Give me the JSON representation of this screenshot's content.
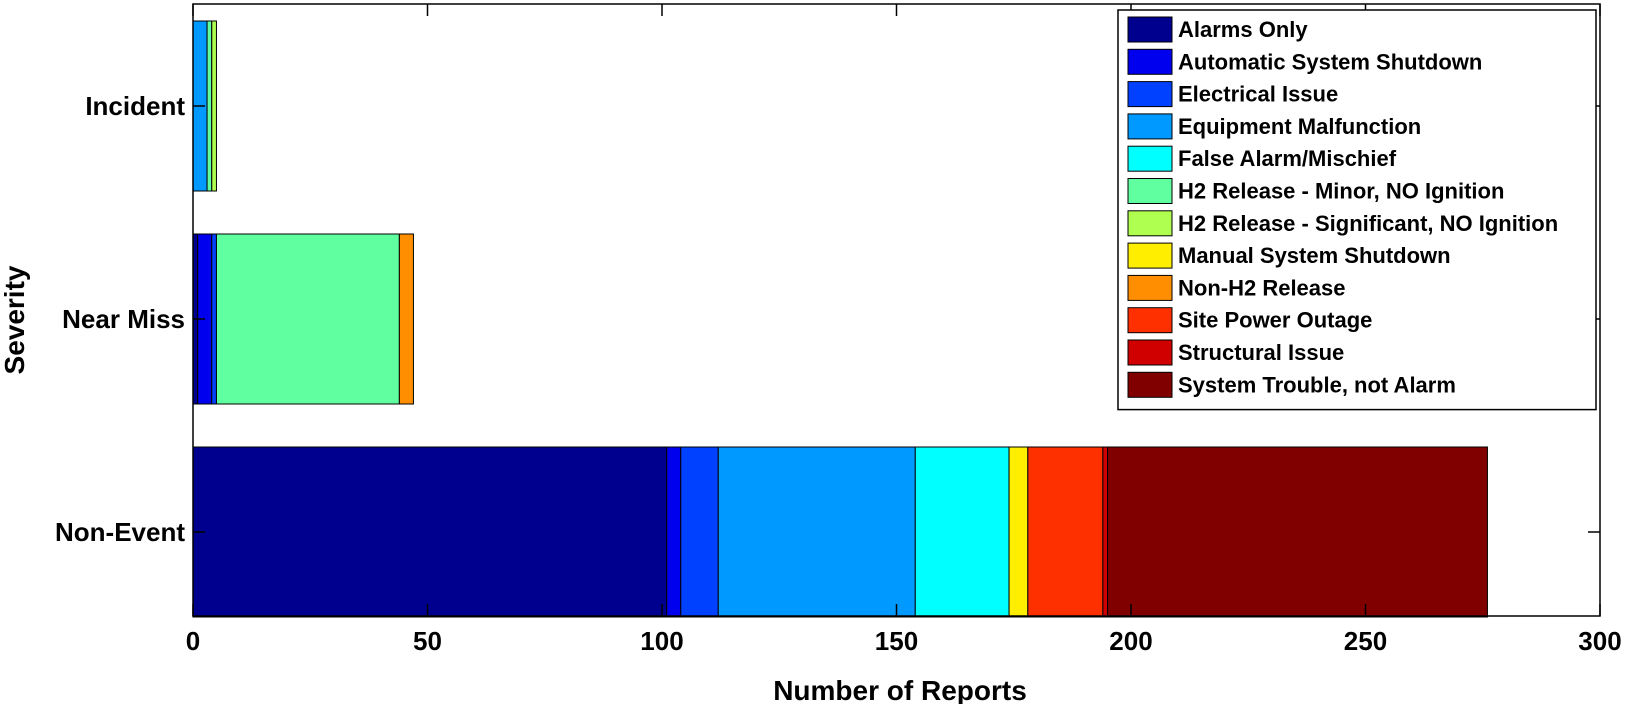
{
  "chart_data": {
    "type": "bar",
    "orientation": "horizontal",
    "stacked": true,
    "title": "",
    "xlabel": "Number of Reports",
    "ylabel": "Severity",
    "xlim": [
      0,
      300
    ],
    "xticks": [
      0,
      50,
      100,
      150,
      200,
      250,
      300
    ],
    "grid": false,
    "legend_position": "top-right",
    "categories": [
      "Incident",
      "Near Miss",
      "Non-Event"
    ],
    "series": [
      {
        "name": "Alarms Only",
        "color": "#00008F",
        "values": [
          0,
          1,
          101
        ]
      },
      {
        "name": "Automatic System Shutdown",
        "color": "#0000EE",
        "values": [
          0,
          3,
          3
        ]
      },
      {
        "name": "Electrical Issue",
        "color": "#0040FF",
        "values": [
          0,
          1,
          8
        ]
      },
      {
        "name": "Equipment Malfunction",
        "color": "#0099FF",
        "values": [
          3,
          0,
          42
        ]
      },
      {
        "name": "False Alarm/Mischief",
        "color": "#00FFFF",
        "values": [
          0,
          0,
          20
        ]
      },
      {
        "name": "H2 Release - Minor, NO Ignition",
        "color": "#60FF9F",
        "values": [
          1,
          39,
          0
        ]
      },
      {
        "name": "H2 Release - Significant, NO Ignition",
        "color": "#AFFF50",
        "values": [
          1,
          0,
          0
        ]
      },
      {
        "name": "Manual System Shutdown",
        "color": "#FFEE00",
        "values": [
          0,
          0,
          4
        ]
      },
      {
        "name": "Non-H2 Release",
        "color": "#FF8F00",
        "values": [
          0,
          3,
          0
        ]
      },
      {
        "name": "Site Power Outage",
        "color": "#FF3000",
        "values": [
          0,
          0,
          16
        ]
      },
      {
        "name": "Structural Issue",
        "color": "#D00000",
        "values": [
          0,
          0,
          1
        ]
      },
      {
        "name": "System Trouble, not Alarm",
        "color": "#800000",
        "values": [
          0,
          0,
          81
        ]
      }
    ]
  }
}
